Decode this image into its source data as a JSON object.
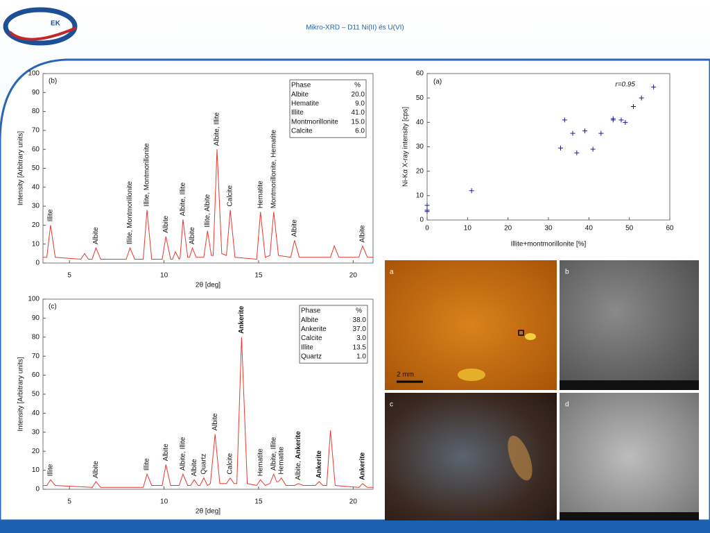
{
  "slide": {
    "title": "Mikro-XRD – D11 Ni(II) és U(VI)",
    "logo_text": "EK",
    "photo_labels": [
      "a",
      "b",
      "c",
      "d"
    ],
    "scale_bar": "2 mm"
  },
  "chart_data": [
    {
      "type": "line",
      "panel_label": "(b)",
      "x_label": "2θ  [deg]",
      "y_label": "Intensity   [Arbitrary units]",
      "xlim": [
        3.6,
        21.05
      ],
      "ylim": [
        0,
        100
      ],
      "xticks": [
        5,
        10,
        15,
        20
      ],
      "yticks": [
        0,
        10,
        20,
        30,
        40,
        50,
        60,
        70,
        80,
        90,
        100
      ],
      "series": [
        {
          "color": "#e8382c",
          "x": [
            3.6,
            3.8,
            4.0,
            4.25,
            5.6,
            5.8,
            6.0,
            6.2,
            6.4,
            6.65,
            8.0,
            8.2,
            8.45,
            8.9,
            9.1,
            9.35,
            9.9,
            10.1,
            10.35,
            10.45,
            10.6,
            10.8,
            10.85,
            11.0,
            11.25,
            11.35,
            11.5,
            11.7,
            12.1,
            12.3,
            12.5,
            12.6,
            12.8,
            13.05,
            13.3,
            13.5,
            13.75,
            14.9,
            15.1,
            15.35,
            15.6,
            15.8,
            16.05,
            16.7,
            16.9,
            17.15,
            18.8,
            19.0,
            19.25,
            20.3,
            20.5,
            20.75,
            21.05
          ],
          "values": [
            3,
            3,
            20,
            3,
            2,
            5,
            2,
            2,
            8,
            2,
            2,
            8,
            2,
            2,
            28,
            2,
            2,
            14,
            2,
            2,
            6,
            2,
            3,
            23,
            3,
            3,
            8,
            3,
            3,
            17,
            4,
            4,
            60,
            5,
            4,
            28,
            3,
            2,
            27,
            3,
            4,
            27,
            4,
            3,
            12,
            3,
            3,
            9,
            3,
            3,
            9,
            3,
            3
          ]
        }
      ],
      "annotations": [
        {
          "x": 4.0,
          "text": "Illite"
        },
        {
          "x": 6.4,
          "text": "Albite"
        },
        {
          "x": 8.2,
          "text": "Illite, Montmorillonite"
        },
        {
          "x": 9.1,
          "text": "Illite, Montmorillonite"
        },
        {
          "x": 10.1,
          "text": "Albite"
        },
        {
          "x": 11.0,
          "text": "Albite, Illite"
        },
        {
          "x": 11.5,
          "text": "Albite"
        },
        {
          "x": 12.3,
          "text": "Illite, Albite"
        },
        {
          "x": 12.8,
          "text": "Albite, Illite"
        },
        {
          "x": 13.5,
          "text": "Calcite"
        },
        {
          "x": 15.1,
          "text": "Hematite"
        },
        {
          "x": 15.8,
          "text": "Montmorillonite, Hematite"
        },
        {
          "x": 16.9,
          "text": "Albite"
        },
        {
          "x": 20.5,
          "text": "Albite"
        }
      ],
      "phase_table": {
        "header": [
          "Phase",
          "%"
        ],
        "rows": [
          [
            "Albite",
            "20.0"
          ],
          [
            "Hematite",
            "9.0"
          ],
          [
            "Illite",
            "41.0"
          ],
          [
            "Montmorillonite",
            "15.0"
          ],
          [
            "Calcite",
            "6.0"
          ]
        ]
      }
    },
    {
      "type": "line",
      "panel_label": "(c)",
      "x_label": "2θ  [deg]",
      "y_label": "Intensity   [Arbitrary units]",
      "xlim": [
        3.6,
        21.05
      ],
      "ylim": [
        0,
        100
      ],
      "xticks": [
        5,
        10,
        15,
        20
      ],
      "yticks": [
        0,
        10,
        20,
        30,
        40,
        50,
        60,
        70,
        80,
        90,
        100
      ],
      "series": [
        {
          "color": "#e8382c",
          "x": [
            3.6,
            3.8,
            4.0,
            4.25,
            6.2,
            6.4,
            6.65,
            8.9,
            9.1,
            9.35,
            9.9,
            10.1,
            10.35,
            10.8,
            11.0,
            11.25,
            11.4,
            11.6,
            11.8,
            11.9,
            12.1,
            12.3,
            12.45,
            12.7,
            12.95,
            13.3,
            13.5,
            13.7,
            13.85,
            14.1,
            14.4,
            14.9,
            15.1,
            15.35,
            15.6,
            15.8,
            15.95,
            16.05,
            16.2,
            16.45,
            16.9,
            17.1,
            17.35,
            18.0,
            18.2,
            18.4,
            18.6,
            18.8,
            19.05,
            20.3,
            20.5,
            20.75,
            21.05
          ],
          "values": [
            2,
            2,
            5,
            2,
            1,
            4,
            1,
            1,
            8,
            2,
            2,
            13,
            2,
            2,
            8,
            2,
            2,
            5,
            2,
            2,
            6,
            2,
            3,
            29,
            3,
            3,
            6,
            3,
            3,
            80,
            3,
            2,
            5,
            2,
            3,
            8,
            4,
            4,
            6,
            2,
            2,
            3,
            2,
            2,
            4,
            2,
            2,
            31,
            2,
            1,
            3,
            1,
            1
          ]
        }
      ],
      "annotations": [
        {
          "x": 4.0,
          "text": "Illite"
        },
        {
          "x": 6.4,
          "text": "Albite"
        },
        {
          "x": 9.1,
          "text": "Illite"
        },
        {
          "x": 10.1,
          "text": "Albite"
        },
        {
          "x": 11.0,
          "text": "Albite, Illite"
        },
        {
          "x": 11.6,
          "text": "Albite"
        },
        {
          "x": 12.1,
          "text": "Quartz"
        },
        {
          "x": 12.7,
          "text": "Albite"
        },
        {
          "x": 13.5,
          "text": "Calcite"
        },
        {
          "x": 14.1,
          "text": "Ankerite",
          "bold": true
        },
        {
          "x": 15.1,
          "text": "Hematite"
        },
        {
          "x": 15.8,
          "text": "Albite, Illite"
        },
        {
          "x": 16.2,
          "text": "Hematite"
        },
        {
          "x": 17.1,
          "text": [
            "Albite, ",
            "Ankerite"
          ],
          "bold": [
            false,
            true
          ]
        },
        {
          "x": 18.2,
          "text": "Ankerite",
          "bold": true
        },
        {
          "x": 20.5,
          "text": "Ankerite",
          "bold": true
        }
      ],
      "phase_table": {
        "header": [
          "Phase",
          "%"
        ],
        "rows": [
          [
            "Albite",
            "38.0"
          ],
          [
            "Ankerite",
            "37.0"
          ],
          [
            "Calcite",
            "3.0"
          ],
          [
            "Illite",
            "13.5"
          ],
          [
            "Quartz",
            "1.0"
          ]
        ]
      }
    },
    {
      "type": "scatter",
      "panel_label": "(a)",
      "annotation": "r=0.95",
      "x_label": "Illite+montmorillonite [%]",
      "y_label": "Ni-Kα X-ray intensity [cps]",
      "xlim": [
        0,
        60
      ],
      "ylim": [
        0,
        60
      ],
      "xticks": [
        0,
        10,
        20,
        30,
        40,
        50,
        60
      ],
      "yticks": [
        0,
        10,
        20,
        30,
        40,
        50,
        60
      ],
      "series": [
        {
          "color": "#1a1a8c",
          "x": [
            0,
            0,
            0,
            11,
            33,
            34,
            36,
            37,
            39,
            41,
            43,
            46,
            46,
            48,
            49,
            51,
            53,
            56
          ],
          "values": [
            6,
            4,
            3.5,
            12,
            29.5,
            41,
            35.5,
            27.5,
            36.5,
            29,
            35.5,
            41,
            41.5,
            41,
            40,
            46.5,
            50,
            54.5
          ]
        }
      ]
    }
  ]
}
